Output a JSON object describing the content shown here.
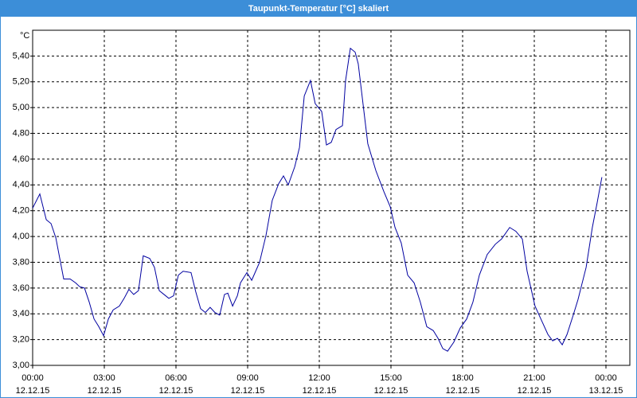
{
  "chart_data": {
    "type": "line",
    "title": "Taupunkt-Temperatur [°C] skaliert",
    "y_unit": "°C",
    "xlim": [
      0,
      25
    ],
    "ylim": [
      3.0,
      5.6
    ],
    "xticks": [
      {
        "value": 0,
        "label": "00:00",
        "sublabel": "12.12.15"
      },
      {
        "value": 3,
        "label": "03:00",
        "sublabel": "12.12.15"
      },
      {
        "value": 6,
        "label": "06:00",
        "sublabel": "12.12.15"
      },
      {
        "value": 9,
        "label": "09:00",
        "sublabel": "12.12.15"
      },
      {
        "value": 12,
        "label": "12:00",
        "sublabel": "12.12.15"
      },
      {
        "value": 15,
        "label": "15:00",
        "sublabel": "12.12.15"
      },
      {
        "value": 18,
        "label": "18:00",
        "sublabel": "12.12.15"
      },
      {
        "value": 21,
        "label": "21:00",
        "sublabel": "12.12.15"
      },
      {
        "value": 24,
        "label": "00:00",
        "sublabel": "13.12.15"
      }
    ],
    "yticks": [
      {
        "value": 3.0,
        "label": "3,00"
      },
      {
        "value": 3.2,
        "label": "3,20"
      },
      {
        "value": 3.4,
        "label": "3,40"
      },
      {
        "value": 3.6,
        "label": "3,60"
      },
      {
        "value": 3.8,
        "label": "3,80"
      },
      {
        "value": 4.0,
        "label": "4,00"
      },
      {
        "value": 4.2,
        "label": "4,20"
      },
      {
        "value": 4.4,
        "label": "4,40"
      },
      {
        "value": 4.6,
        "label": "4,60"
      },
      {
        "value": 4.8,
        "label": "4,80"
      },
      {
        "value": 5.0,
        "label": "5,00"
      },
      {
        "value": 5.2,
        "label": "5,20"
      },
      {
        "value": 5.4,
        "label": "5,40"
      }
    ],
    "grid": true,
    "series": [
      {
        "color": "#0000a0",
        "x": [
          0,
          0.3,
          0.57,
          0.77,
          0.97,
          1.3,
          1.57,
          1.8,
          1.97,
          2.17,
          2.37,
          2.57,
          2.77,
          2.97,
          3.17,
          3.37,
          3.63,
          3.83,
          4.03,
          4.23,
          4.43,
          4.63,
          4.9,
          5.1,
          5.3,
          5.5,
          5.7,
          5.9,
          6.1,
          6.3,
          6.63,
          6.83,
          7.03,
          7.23,
          7.43,
          7.63,
          7.83,
          8.03,
          8.17,
          8.37,
          8.57,
          8.7,
          8.97,
          9.17,
          9.5,
          9.77,
          10.03,
          10.3,
          10.5,
          10.7,
          10.97,
          11.17,
          11.37,
          11.63,
          11.83,
          12.1,
          12.3,
          12.5,
          12.7,
          12.97,
          13.1,
          13.3,
          13.5,
          13.63,
          13.83,
          14.03,
          14.37,
          14.7,
          14.97,
          15.17,
          15.43,
          15.7,
          15.97,
          16.23,
          16.5,
          16.77,
          16.97,
          17.17,
          17.37,
          17.63,
          17.9,
          18.17,
          18.43,
          18.7,
          19.03,
          19.37,
          19.63,
          19.97,
          20.23,
          20.5,
          20.7,
          21.03,
          21.3,
          21.57,
          21.77,
          21.97,
          22.17,
          22.37,
          22.63,
          22.83,
          23.17,
          23.43,
          23.63,
          23.83
        ],
        "values": [
          4.22,
          4.33,
          4.13,
          4.1,
          3.99,
          3.67,
          3.67,
          3.64,
          3.61,
          3.6,
          3.49,
          3.36,
          3.3,
          3.23,
          3.36,
          3.43,
          3.46,
          3.52,
          3.59,
          3.55,
          3.58,
          3.85,
          3.83,
          3.76,
          3.58,
          3.55,
          3.52,
          3.54,
          3.7,
          3.73,
          3.72,
          3.57,
          3.44,
          3.41,
          3.45,
          3.41,
          3.39,
          3.55,
          3.56,
          3.46,
          3.54,
          3.64,
          3.72,
          3.66,
          3.8,
          4.01,
          4.28,
          4.41,
          4.47,
          4.4,
          4.54,
          4.69,
          5.09,
          5.21,
          5.03,
          4.97,
          4.71,
          4.73,
          4.83,
          4.86,
          5.21,
          5.46,
          5.43,
          5.34,
          5.03,
          4.72,
          4.51,
          4.35,
          4.23,
          4.07,
          3.95,
          3.7,
          3.64,
          3.49,
          3.3,
          3.27,
          3.21,
          3.13,
          3.11,
          3.18,
          3.29,
          3.36,
          3.49,
          3.7,
          3.86,
          3.94,
          3.98,
          4.07,
          4.04,
          3.98,
          3.73,
          3.46,
          3.35,
          3.24,
          3.19,
          3.21,
          3.16,
          3.24,
          3.39,
          3.51,
          3.76,
          4.07,
          4.26,
          4.46
        ]
      }
    ]
  }
}
